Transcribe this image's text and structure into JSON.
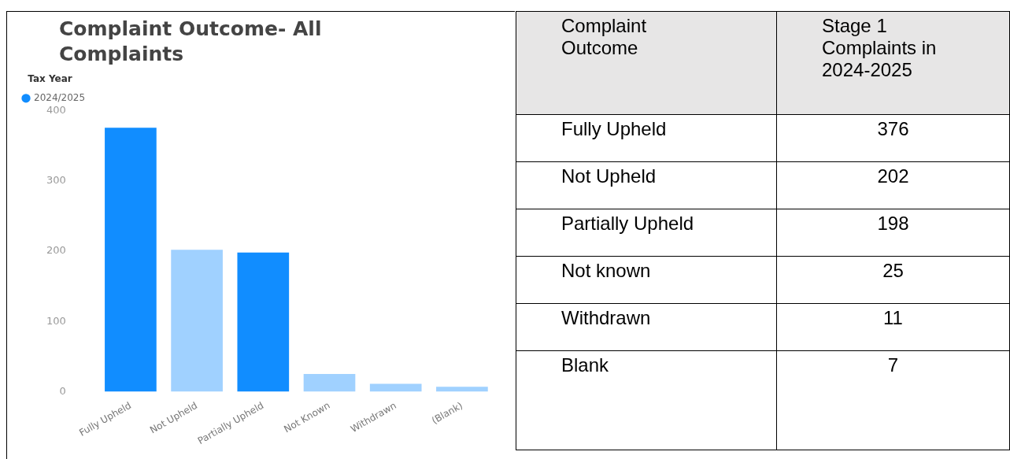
{
  "chart_data": [
    {
      "type": "bar",
      "title": "Complaint Outcome- All Complaints",
      "legend_title": "Tax Year",
      "legend": "top left",
      "categories": [
        "Fully Upheld",
        "Not Upheld",
        "Partially Upheld",
        "Not Known",
        "Withdrawn",
        "(Blank)"
      ],
      "series": [
        {
          "name": "2024/2025",
          "color": "#118dff",
          "colors": [
            "#118dff",
            "#a0d1ff",
            "#118dff",
            "#a0d1ff",
            "#a0d1ff",
            "#a0d1ff"
          ],
          "values": [
            376,
            202,
            198,
            25,
            11,
            7
          ]
        }
      ],
      "ylim": [
        0,
        400
      ],
      "yticks": [
        0,
        100,
        200,
        300,
        400
      ]
    },
    {
      "type": "other",
      "annotations": [
        "Complaint Outcome",
        "Stage 1 Complaints in 2024-2025"
      ],
      "categories": [
        "Fully Upheld",
        "Not Upheld",
        "Partially Upheld",
        "Not known",
        "Withdrawn",
        "Blank"
      ],
      "values": [
        376,
        202,
        198,
        25,
        11,
        7
      ],
      "data_labels": true
    }
  ]
}
